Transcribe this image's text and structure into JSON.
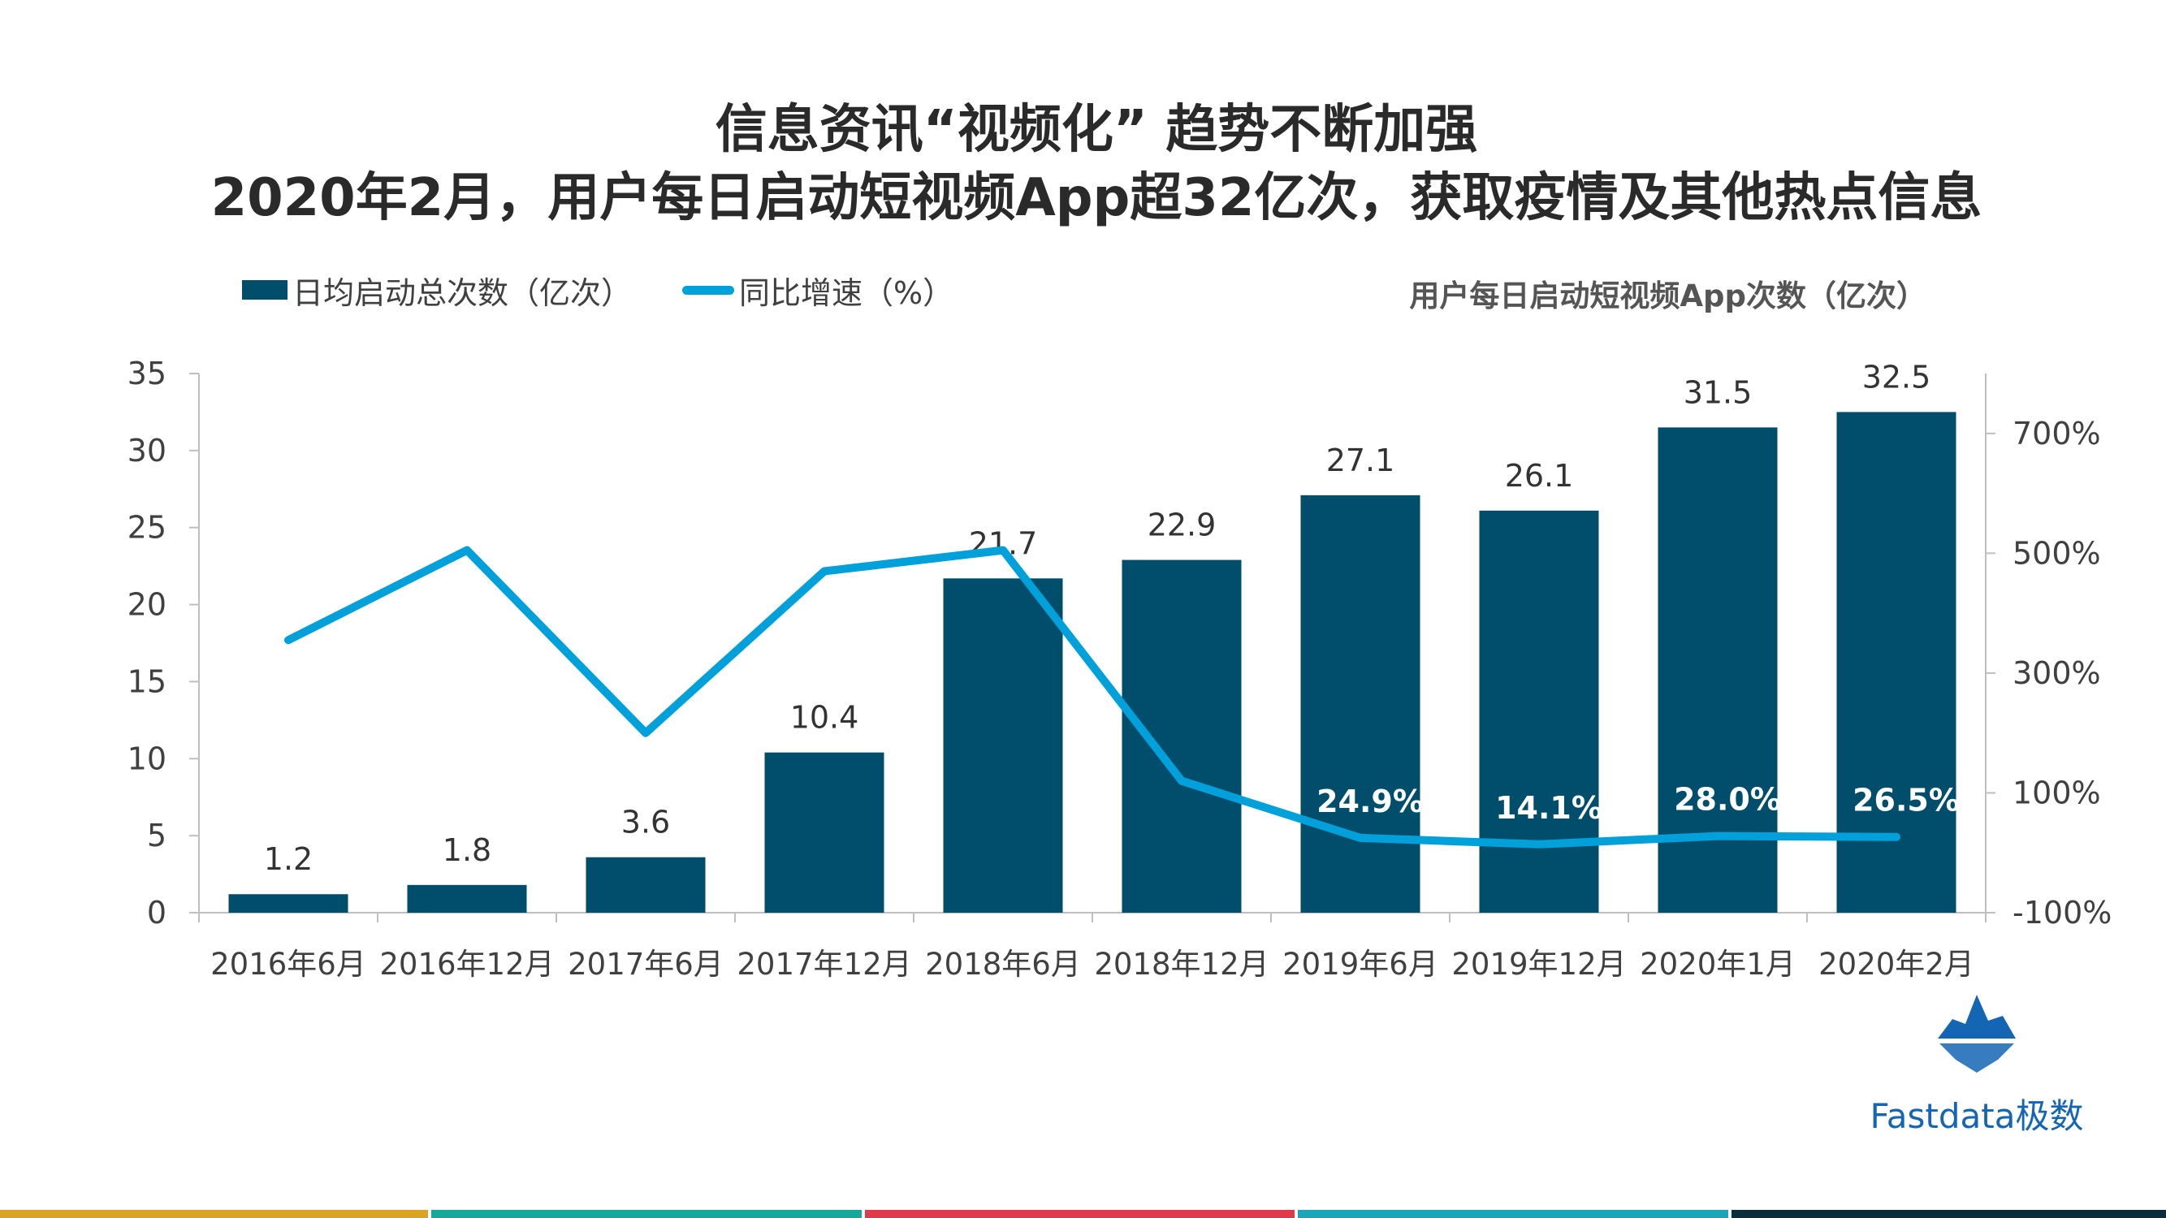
{
  "header": {
    "title_line1": "信息资讯“视频化” 趋势不断加强",
    "title_line2": "2020年2月，用户每日启动短视频App超32亿次，获取疫情及其他热点信息"
  },
  "legend": {
    "bar_label": "日均启动总次数（亿次）",
    "line_label": "同比增速（%）"
  },
  "chart_subtitle": "用户每日启动短视频App次数（亿次）",
  "logo": {
    "text": "Fastdata极数",
    "icon": "iceberg-logo-icon"
  },
  "colors": {
    "bar": "#004d6c",
    "line": "#00a0da",
    "axis_text": "#404040",
    "strip": [
      "#d9a520",
      "#13a99b",
      "#e0394a",
      "#19a6b8",
      "#0b2e3f"
    ]
  },
  "chart_data": {
    "type": "bar",
    "categories": [
      "2016年6月",
      "2016年12月",
      "2017年6月",
      "2017年12月",
      "2018年6月",
      "2018年12月",
      "2019年6月",
      "2019年12月",
      "2020年1月",
      "2020年2月"
    ],
    "series": [
      {
        "name": "日均启动总次数（亿次）",
        "type": "bar",
        "axis": "left",
        "values": [
          1.2,
          1.8,
          3.6,
          10.4,
          21.7,
          22.9,
          27.1,
          26.1,
          31.5,
          32.5
        ],
        "labels": [
          "1.2",
          "1.8",
          "3.6",
          "10.4",
          "21.7",
          "22.9",
          "27.1",
          "26.1",
          "31.5",
          "32.5"
        ]
      },
      {
        "name": "同比增速（%）",
        "type": "line",
        "axis": "right",
        "values": [
          355,
          505,
          200,
          470,
          505,
          120,
          24.9,
          14.1,
          28.0,
          26.5
        ],
        "labels": [
          "",
          "",
          "",
          "",
          "",
          "",
          "24.9%",
          "14.1%",
          "28.0%",
          "26.5%"
        ]
      }
    ],
    "y_left": {
      "range": [
        0,
        35
      ],
      "ticks": [
        "0",
        "5",
        "10",
        "15",
        "20",
        "25",
        "30",
        "35"
      ]
    },
    "y_right": {
      "range": [
        -100,
        800
      ],
      "ticks": [
        "-100%",
        "100%",
        "300%",
        "500%",
        "700%"
      ],
      "tick_values": [
        -100,
        100,
        300,
        500,
        700
      ]
    },
    "grid": false,
    "legend_position": "top-left"
  }
}
